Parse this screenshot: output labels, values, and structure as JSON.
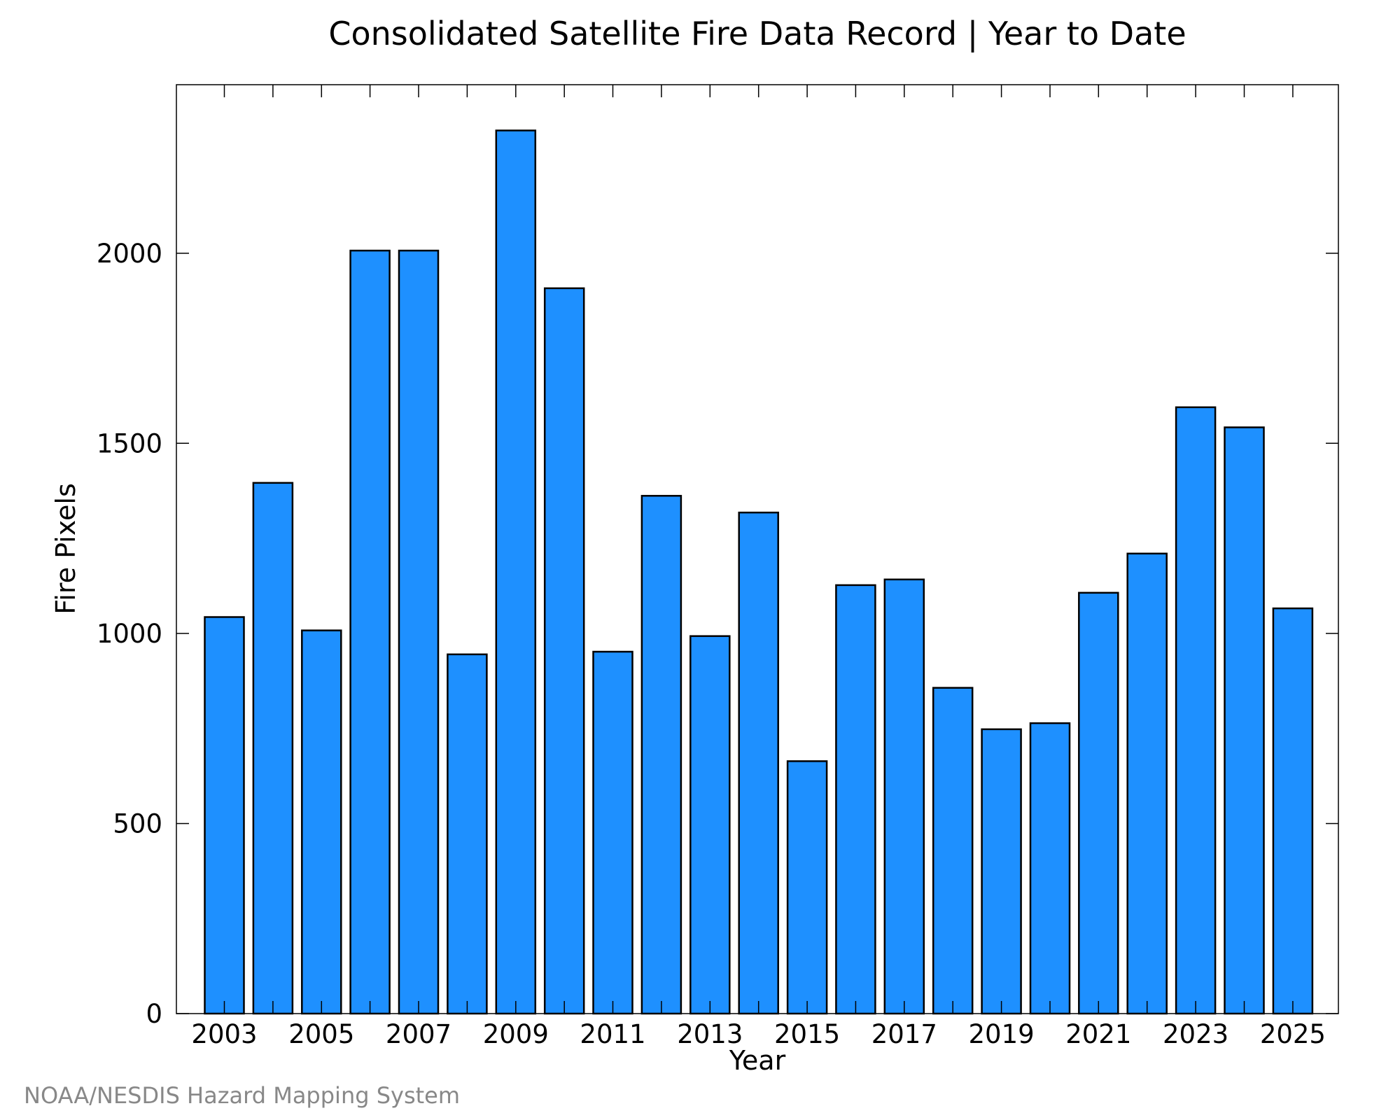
{
  "chart_data": {
    "type": "bar",
    "title": "Consolidated Satellite Fire Data Record | Year to Date",
    "xlabel": "Year",
    "ylabel": "Fire Pixels",
    "categories": [
      "2003",
      "2004",
      "2005",
      "2006",
      "2007",
      "2008",
      "2009",
      "2010",
      "2011",
      "2012",
      "2013",
      "2014",
      "2015",
      "2016",
      "2017",
      "2018",
      "2019",
      "2020",
      "2021",
      "2022",
      "2023",
      "2024",
      "2025"
    ],
    "values": [
      1043,
      1396,
      1008,
      2007,
      2007,
      945,
      2323,
      1908,
      952,
      1362,
      993,
      1318,
      664,
      1127,
      1142,
      857,
      748,
      764,
      1107,
      1210,
      1595,
      1542,
      1066
    ],
    "x_tick_labels": [
      "2003",
      "2005",
      "2007",
      "2009",
      "2011",
      "2013",
      "2015",
      "2017",
      "2019",
      "2021",
      "2023",
      "2025"
    ],
    "y_ticks": [
      0,
      500,
      1000,
      1500,
      2000
    ],
    "ylim": [
      0,
      2445
    ],
    "bar_color": "#1e90ff",
    "grid": false
  },
  "footer": {
    "credit": "NOAA/NESDIS Hazard Mapping System"
  }
}
